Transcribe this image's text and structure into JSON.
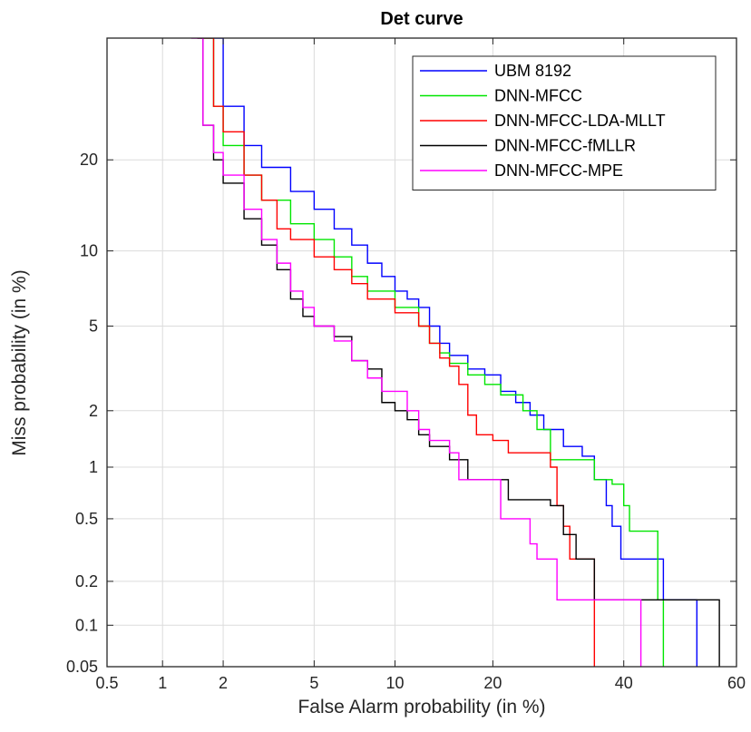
{
  "chart_data": {
    "type": "line",
    "title": "Det curve",
    "xlabel": "False Alarm probability (in %)",
    "ylabel": "Miss probability (in %)",
    "x_scale": "probit",
    "y_scale": "probit",
    "xlim": [
      0.5,
      60
    ],
    "ylim": [
      0.05,
      40
    ],
    "x_ticks": [
      0.5,
      1,
      2,
      5,
      10,
      20,
      40,
      60
    ],
    "x_tick_labels": [
      "0.5",
      "1",
      "2",
      "5",
      "10",
      "20",
      "40",
      "60"
    ],
    "y_ticks": [
      0.05,
      0.1,
      0.2,
      0.5,
      1,
      2,
      5,
      10,
      20
    ],
    "y_tick_labels": [
      "0.05",
      "0.1",
      "0.2",
      "0.5",
      "1",
      "2",
      "5",
      "10",
      "20"
    ],
    "grid": true,
    "legend_position": "top-right",
    "series": [
      {
        "name": "UBM 8192",
        "color": "#0000ff",
        "points": [
          [
            1.6,
            40
          ],
          [
            2.0,
            28
          ],
          [
            2.5,
            22
          ],
          [
            3.0,
            19
          ],
          [
            4.0,
            16
          ],
          [
            5.0,
            14
          ],
          [
            6.0,
            12
          ],
          [
            7.0,
            10.5
          ],
          [
            8.0,
            9
          ],
          [
            9.0,
            8
          ],
          [
            10.0,
            7
          ],
          [
            11.0,
            6.5
          ],
          [
            12.0,
            6
          ],
          [
            13.0,
            5
          ],
          [
            14.0,
            4.2
          ],
          [
            15.0,
            3.7
          ],
          [
            17.0,
            3.2
          ],
          [
            19.0,
            3.0
          ],
          [
            21.0,
            2.5
          ],
          [
            23.0,
            2.2
          ],
          [
            25.0,
            1.9
          ],
          [
            27.0,
            1.6
          ],
          [
            30.0,
            1.3
          ],
          [
            33.0,
            1.15
          ],
          [
            35.0,
            0.85
          ],
          [
            37.0,
            0.6
          ],
          [
            38.0,
            0.45
          ],
          [
            39.5,
            0.28
          ],
          [
            42.0,
            0.28
          ],
          [
            45.0,
            0.28
          ],
          [
            47.0,
            0.28
          ],
          [
            47.0,
            0.15
          ],
          [
            50.0,
            0.15
          ],
          [
            53.0,
            0.15
          ],
          [
            53.0,
            0.05
          ]
        ]
      },
      {
        "name": "DNN-MFCC",
        "color": "#00e600",
        "points": [
          [
            1.5,
            40
          ],
          [
            1.8,
            28
          ],
          [
            2.0,
            22
          ],
          [
            2.5,
            18
          ],
          [
            3.0,
            15
          ],
          [
            4.0,
            12.5
          ],
          [
            5.0,
            11
          ],
          [
            6.0,
            9.5
          ],
          [
            7.0,
            8
          ],
          [
            8.0,
            7
          ],
          [
            10.0,
            6
          ],
          [
            12.0,
            5
          ],
          [
            13.0,
            4.2
          ],
          [
            14.0,
            3.8
          ],
          [
            15.0,
            3.4
          ],
          [
            17.0,
            3.0
          ],
          [
            19.0,
            2.7
          ],
          [
            21.0,
            2.4
          ],
          [
            24.0,
            2.0
          ],
          [
            26.0,
            1.6
          ],
          [
            28.0,
            1.1
          ],
          [
            32.0,
            1.1
          ],
          [
            35.0,
            0.85
          ],
          [
            38.0,
            0.8
          ],
          [
            40.0,
            0.6
          ],
          [
            41.0,
            0.42
          ],
          [
            44.0,
            0.42
          ],
          [
            46.0,
            0.42
          ],
          [
            46.0,
            0.15
          ],
          [
            47.0,
            0.15
          ],
          [
            47.0,
            0.05
          ]
        ]
      },
      {
        "name": "DNN-MFCC-LDA-MLLT",
        "color": "#ff0000",
        "points": [
          [
            1.5,
            40
          ],
          [
            1.8,
            28
          ],
          [
            2.0,
            24
          ],
          [
            2.5,
            18
          ],
          [
            3.0,
            15
          ],
          [
            3.5,
            12
          ],
          [
            4.0,
            11
          ],
          [
            5.0,
            9.5
          ],
          [
            6.0,
            8.5
          ],
          [
            7.0,
            7.5
          ],
          [
            8.0,
            6.5
          ],
          [
            10.0,
            5.7
          ],
          [
            12.0,
            5.0
          ],
          [
            13.0,
            4.2
          ],
          [
            14.0,
            3.6
          ],
          [
            15.0,
            3.3
          ],
          [
            16.0,
            2.7
          ],
          [
            17.0,
            1.9
          ],
          [
            18.0,
            1.5
          ],
          [
            20.0,
            1.4
          ],
          [
            22.0,
            1.2
          ],
          [
            25.0,
            1.2
          ],
          [
            28.0,
            1.0
          ],
          [
            29.0,
            0.6
          ],
          [
            30.0,
            0.45
          ],
          [
            31.0,
            0.28
          ],
          [
            33.0,
            0.28
          ],
          [
            35.0,
            0.28
          ],
          [
            35.0,
            0.05
          ]
        ]
      },
      {
        "name": "DNN-MFCC-fMLLR",
        "color": "#000000",
        "points": [
          [
            1.5,
            40
          ],
          [
            1.6,
            25
          ],
          [
            1.8,
            20
          ],
          [
            2.0,
            17
          ],
          [
            2.5,
            13
          ],
          [
            3.0,
            10.5
          ],
          [
            3.5,
            8.5
          ],
          [
            4.0,
            6.5
          ],
          [
            4.5,
            5.5
          ],
          [
            5.0,
            5
          ],
          [
            6.0,
            4.5
          ],
          [
            7.0,
            3.5
          ],
          [
            8.0,
            3.2
          ],
          [
            9.0,
            2.2
          ],
          [
            10.0,
            2.0
          ],
          [
            11.0,
            1.8
          ],
          [
            12.0,
            1.5
          ],
          [
            13.0,
            1.3
          ],
          [
            15.0,
            1.1
          ],
          [
            17.0,
            0.85
          ],
          [
            20.0,
            0.85
          ],
          [
            22.0,
            0.65
          ],
          [
            25.0,
            0.65
          ],
          [
            28.0,
            0.6
          ],
          [
            30.0,
            0.4
          ],
          [
            32.0,
            0.28
          ],
          [
            34.0,
            0.28
          ],
          [
            35.0,
            0.15
          ],
          [
            40.0,
            0.15
          ],
          [
            45.0,
            0.15
          ],
          [
            50.0,
            0.15
          ],
          [
            55.0,
            0.15
          ],
          [
            57.0,
            0.15
          ],
          [
            57.0,
            0.05
          ]
        ]
      },
      {
        "name": "DNN-MFCC-MPE",
        "color": "#ff00ff",
        "points": [
          [
            1.4,
            40
          ],
          [
            1.6,
            25
          ],
          [
            1.8,
            21
          ],
          [
            2.0,
            18
          ],
          [
            2.5,
            14
          ],
          [
            3.0,
            11
          ],
          [
            3.5,
            9
          ],
          [
            4.0,
            7
          ],
          [
            4.5,
            6
          ],
          [
            5.0,
            5
          ],
          [
            6.0,
            4.3
          ],
          [
            7.0,
            3.5
          ],
          [
            8.0,
            2.9
          ],
          [
            9.0,
            2.5
          ],
          [
            10.0,
            2.5
          ],
          [
            11.0,
            2.0
          ],
          [
            12.0,
            1.6
          ],
          [
            13.0,
            1.4
          ],
          [
            15.0,
            1.2
          ],
          [
            16.0,
            0.85
          ],
          [
            20.0,
            0.85
          ],
          [
            21.0,
            0.5
          ],
          [
            24.0,
            0.5
          ],
          [
            25.0,
            0.35
          ],
          [
            26.0,
            0.28
          ],
          [
            28.0,
            0.28
          ],
          [
            29.0,
            0.15
          ],
          [
            35.0,
            0.15
          ],
          [
            40.0,
            0.15
          ],
          [
            43.0,
            0.15
          ],
          [
            43.0,
            0.05
          ]
        ]
      }
    ]
  }
}
